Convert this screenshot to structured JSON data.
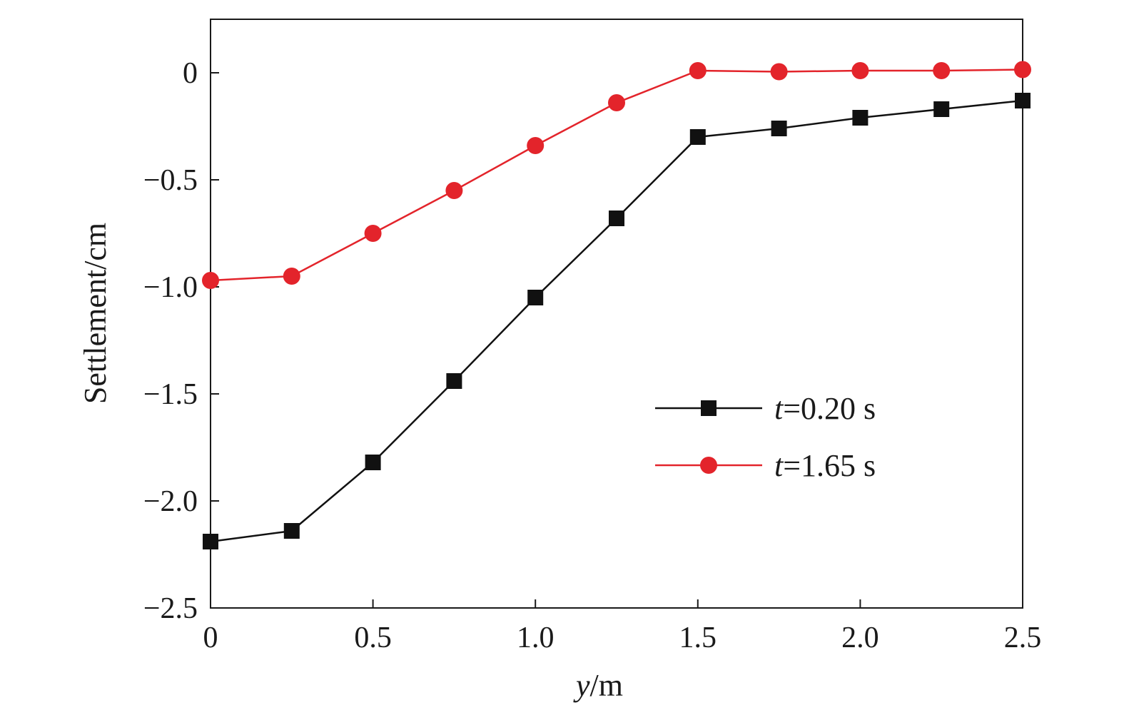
{
  "chart_data": {
    "type": "line",
    "xlabel_var": "y",
    "xlabel_unit": "/m",
    "ylabel": "Settlement/cm",
    "xlim": [
      0,
      2.5
    ],
    "ylim": [
      -2.5,
      0.25
    ],
    "xticks": [
      0,
      0.5,
      1.0,
      1.5,
      2.0,
      2.5
    ],
    "xtick_labels": [
      "0",
      "0.5",
      "1.0",
      "1.5",
      "2.0",
      "2.5"
    ],
    "yticks": [
      0,
      -0.5,
      -1.0,
      -1.5,
      -2.0,
      -2.5
    ],
    "ytick_labels": [
      "0",
      "−0.5",
      "−1.0",
      "−1.5",
      "−2.0",
      "−2.5"
    ],
    "grid": false,
    "legend_position": "center-right",
    "x": [
      0,
      0.25,
      0.5,
      0.75,
      1.0,
      1.25,
      1.5,
      1.75,
      2.0,
      2.25,
      2.5
    ],
    "series": [
      {
        "name_var": "t",
        "name_rest": "=0.20 s",
        "color": "#111111",
        "marker": "square",
        "values": [
          -2.19,
          -2.14,
          -1.82,
          -1.44,
          -1.05,
          -0.68,
          -0.3,
          -0.26,
          -0.21,
          -0.17,
          -0.13
        ]
      },
      {
        "name_var": "t",
        "name_rest": "=1.65 s",
        "color": "#e3242b",
        "marker": "circle",
        "values": [
          -0.97,
          -0.95,
          -0.75,
          -0.55,
          -0.34,
          -0.14,
          0.01,
          0.005,
          0.01,
          0.01,
          0.015
        ]
      }
    ]
  }
}
